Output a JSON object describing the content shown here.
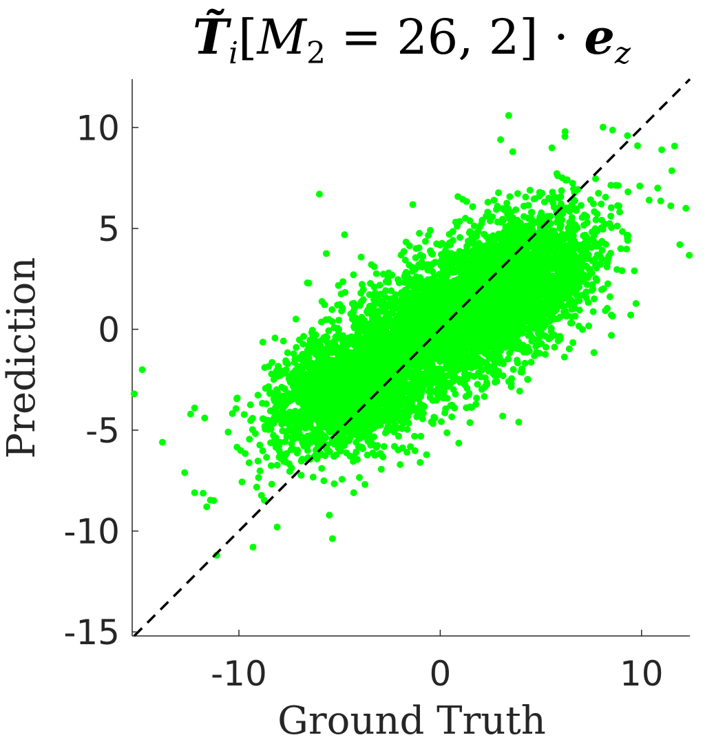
{
  "chart_data": {
    "type": "scatter",
    "title": "T̃i[M2 = 26, 2] · ez",
    "xlabel": "Ground Truth",
    "ylabel": "Prediction",
    "xlim": [
      -15.3,
      12.4
    ],
    "ylim": [
      -15.2,
      12.4
    ],
    "x_ticks": [
      -10,
      0,
      10
    ],
    "x_tick_labels": [
      "-10",
      "0",
      "10"
    ],
    "y_ticks": [
      -15,
      -10,
      -5,
      0,
      5,
      10
    ],
    "y_tick_labels": [
      "-15",
      "-10",
      "-5",
      "0",
      "5",
      "10"
    ],
    "grid": false,
    "legend": "none",
    "series": [
      {
        "color": "#00ff00",
        "marker": "circle",
        "count_estimate": 6000,
        "trend": "positive correlation, roughly y = 0.65x, spread ~2",
        "outliers": [
          {
            "x": -15.2,
            "y": -3.2
          },
          {
            "x": -14.8,
            "y": -2.0
          },
          {
            "x": -13.8,
            "y": -5.6
          },
          {
            "x": -12.4,
            "y": -4.2
          },
          {
            "x": -12.2,
            "y": -3.9
          },
          {
            "x": -12.2,
            "y": -8.1
          },
          {
            "x": -11.7,
            "y": -4.4
          },
          {
            "x": -11.6,
            "y": -8.8
          },
          {
            "x": -11.1,
            "y": -11.2
          },
          {
            "x": -9.3,
            "y": -10.8
          },
          {
            "x": -8.1,
            "y": -9.8
          },
          {
            "x": -6.0,
            "y": 6.7
          },
          {
            "x": -6.6,
            "y": 2.3
          },
          {
            "x": -4.3,
            "y": -8.1
          },
          {
            "x": 3.4,
            "y": 10.6
          },
          {
            "x": 3.0,
            "y": 9.4
          },
          {
            "x": 3.6,
            "y": 8.8
          },
          {
            "x": 6.2,
            "y": 9.8
          },
          {
            "x": 9.3,
            "y": 9.6
          },
          {
            "x": 9.8,
            "y": 9.1
          },
          {
            "x": 11.0,
            "y": 8.9
          },
          {
            "x": 12.2,
            "y": 6.0
          },
          {
            "x": 11.9,
            "y": 4.2
          },
          {
            "x": 10.8,
            "y": 7.0
          },
          {
            "x": 8.5,
            "y": -0.3
          },
          {
            "x": 3.9,
            "y": -4.6
          },
          {
            "x": 3.1,
            "y": -4.3
          },
          {
            "x": -1.0,
            "y": -6.6
          }
        ]
      }
    ],
    "reference_line": {
      "style": "dashed",
      "color": "#000000",
      "from": [
        -15.2,
        -15.2
      ],
      "to": [
        12.4,
        12.4
      ]
    }
  }
}
